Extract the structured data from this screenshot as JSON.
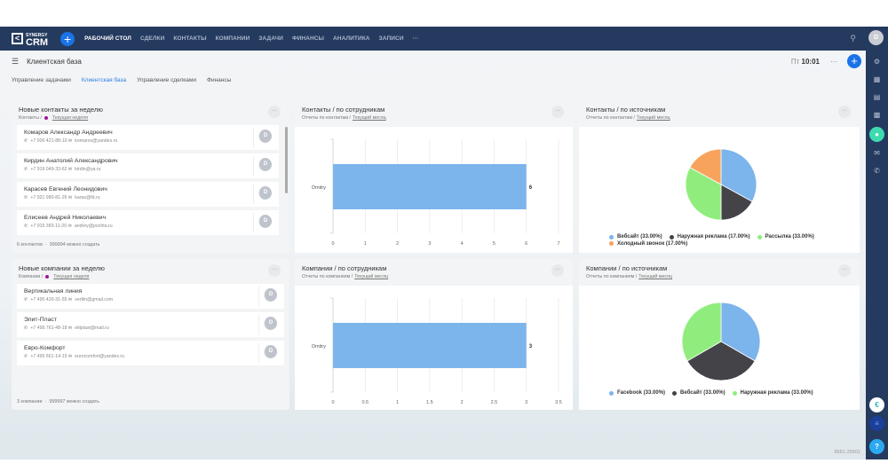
{
  "nav": {
    "logo_small": "SYNERGY",
    "logo_big": "CRM",
    "items": [
      "РАБОЧИЙ СТОЛ",
      "СДЕЛКИ",
      "КОНТАКТЫ",
      "КОМПАНИИ",
      "ЗАДАЧИ",
      "ФИНАНСЫ",
      "АНАЛИТИКА",
      "ЗАПИСИ"
    ],
    "more": "···",
    "avatar": "D"
  },
  "header": {
    "title": "Клиентская база",
    "day": "Пт",
    "time": "10:01",
    "more": "···",
    "add": "+"
  },
  "tabs": [
    "Управление задачами",
    "Клиентская база",
    "Управление сделками",
    "Финансы"
  ],
  "active_tab": "Клиентская база",
  "contacts_card": {
    "title": "Новые контакты за неделю",
    "crumb": "Контакты /",
    "period": "Текущая неделя",
    "more": "···",
    "items": [
      {
        "name": "Комаров Александр Андреевич",
        "phone": "+7 926 421-88-10",
        "email": "komarov@yandex.ru",
        "avatar": "D"
      },
      {
        "name": "Кирдин Анатолий Александрович",
        "phone": "+7 919 049-33-62",
        "email": "kirdin@ya.ru",
        "avatar": "D"
      },
      {
        "name": "Карасев Евгений Леонидович",
        "phone": "+7 921 980-81-26",
        "email": "karas@fd.ru",
        "avatar": "D"
      },
      {
        "name": "Елисеев Андрей Николаевич",
        "phone": "+7 915 383-11-20",
        "email": "andrey@pochta.ru",
        "avatar": "D"
      }
    ],
    "count": "6 контактов",
    "sep": "·",
    "remaining": "999994 можно создать"
  },
  "companies_card": {
    "title": "Новые компании за неделю",
    "crumb": "Компании /",
    "period": "Текущая неделя",
    "more": "···",
    "items": [
      {
        "name": "Вертикальная линия",
        "phone": "+7 495 420-31-55",
        "email": "vertlin@gmail.com",
        "avatar": "D"
      },
      {
        "name": "Элит-Пласт",
        "phone": "+7 499 761-48-18",
        "email": "elitplast@mail.ru",
        "avatar": "D"
      },
      {
        "name": "Евро-Комфорт",
        "phone": "+7 495 661-14-15",
        "email": "eurocomfort@yandex.ru",
        "avatar": "D"
      }
    ],
    "count": "3 компании",
    "sep": "·",
    "remaining": "999997 можно создать"
  },
  "chart_cards": [
    {
      "title": "Контакты / по сотрудникам",
      "crumb": "Отчеты по контактам /",
      "period": "Текущий месяц",
      "more": "···"
    },
    {
      "title": "Контакты / по источникам",
      "crumb": "Отчеты по контактам /",
      "period": "Текущий месяц",
      "more": "···"
    },
    {
      "title": "Компании / по сотрудникам",
      "crumb": "Отчеты по компаниям /",
      "period": "Текущий месяц",
      "more": "···"
    },
    {
      "title": "Компании / по источникам",
      "crumb": "Отчеты по компаниям /",
      "period": "Текущий месяц",
      "more": "···"
    }
  ],
  "chart_data": [
    {
      "type": "bar",
      "orientation": "horizontal",
      "categories": [
        "Dmitry"
      ],
      "values": [
        6
      ],
      "xlim": [
        0,
        7
      ],
      "ticks": [
        "0",
        "1",
        "2",
        "3",
        "4",
        "5",
        "6",
        "7"
      ],
      "data_labels": [
        "6"
      ],
      "color": "#7cb4ec",
      "grid": true
    },
    {
      "type": "pie",
      "slices": [
        {
          "label": "Вебсайт",
          "value": 33,
          "legend": "Вебсайт (33.00%)",
          "color": "#7cb4ec"
        },
        {
          "label": "Наружная реклама",
          "value": 17,
          "legend": "Наружная реклама (17.00%)",
          "color": "#434348"
        },
        {
          "label": "Рассылка",
          "value": 33,
          "legend": "Рассылка (33.00%)",
          "color": "#90ed7d"
        },
        {
          "label": "Холодный звонок",
          "value": 17,
          "legend": "Холодный звонок (17.00%)",
          "color": "#f7a35c"
        }
      ],
      "legend": "bottom"
    },
    {
      "type": "bar",
      "orientation": "horizontal",
      "categories": [
        "Dmitry"
      ],
      "values": [
        3
      ],
      "xlim": [
        0,
        3.5
      ],
      "ticks": [
        "0",
        "0.5",
        "1",
        "1.5",
        "2",
        "2.5",
        "3",
        "3.5"
      ],
      "data_labels": [
        "3"
      ],
      "color": "#7cb4ec",
      "grid": true
    },
    {
      "type": "pie",
      "slices": [
        {
          "label": "Facebook",
          "value": 33,
          "legend": "Facebook (33.00%)",
          "color": "#7cb4ec"
        },
        {
          "label": "Вебсайт",
          "value": 33,
          "legend": "Вебсайт (33.00%)",
          "color": "#434348"
        },
        {
          "label": "Наружная реклама",
          "value": 33,
          "legend": "Наружная реклама (33.00%)",
          "color": "#90ed7d"
        }
      ],
      "legend": "bottom"
    }
  ],
  "footer": {
    "code": "8561-25501"
  },
  "colors": {
    "nav": "#243a5e",
    "accent": "#1a73e8",
    "bell": "#3ddbb0"
  }
}
